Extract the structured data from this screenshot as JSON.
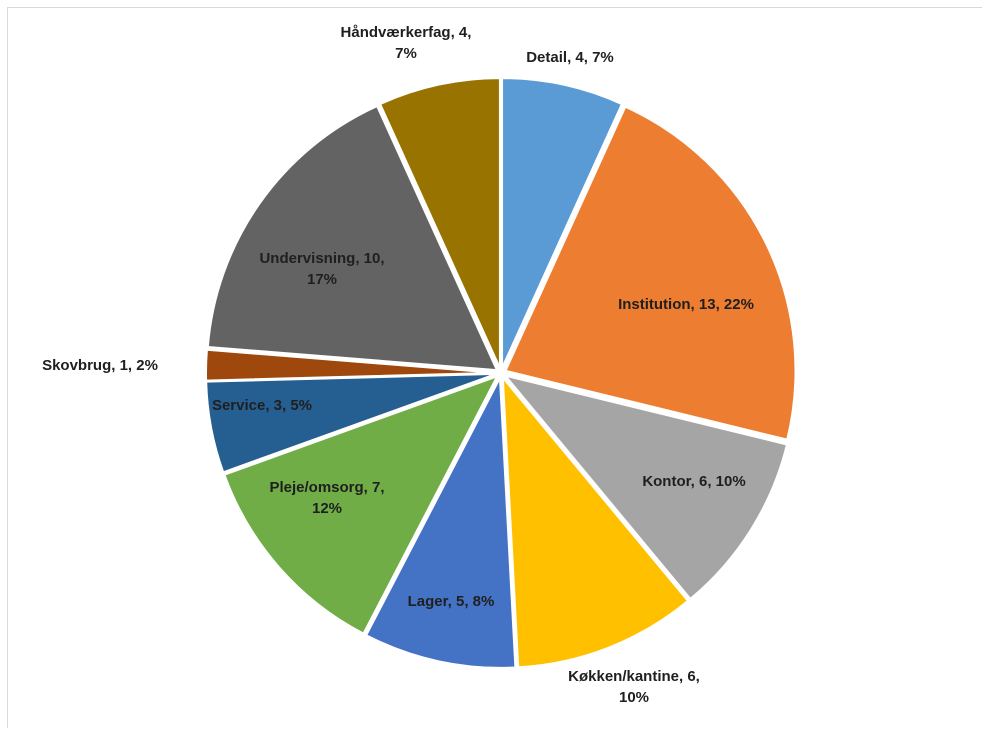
{
  "chart_data": {
    "type": "pie",
    "title": "",
    "categories": [
      "Detail",
      "Institution",
      "Kontor",
      "Køkken/kantine",
      "Lager",
      "Pleje/omsorg",
      "Service",
      "Skovbrug",
      "Undervisning",
      "Håndværkerfag"
    ],
    "values": [
      4,
      13,
      6,
      6,
      5,
      7,
      3,
      1,
      10,
      4
    ],
    "percents": [
      "7%",
      "22%",
      "10%",
      "10%",
      "8%",
      "12%",
      "5%",
      "2%",
      "17%",
      "7%"
    ],
    "colors": [
      "#5b9bd5",
      "#ed7d31",
      "#a5a5a5",
      "#ffc000",
      "#4472c4",
      "#70ad47",
      "#255e91",
      "#9e480e",
      "#636363",
      "#997300"
    ],
    "data_labels": [
      [
        "Detail, 4, 7%"
      ],
      [
        "Institution, 13, 22%"
      ],
      [
        "Kontor,  6, 10%"
      ],
      [
        "Køkken/kantine, 6,",
        "10%"
      ],
      [
        "Lager, 5, 8%"
      ],
      [
        "Pleje/omsorg, 7,",
        "12%"
      ],
      [
        "Service, 3, 5%"
      ],
      [
        "Skovbrug, 1, 2%"
      ],
      [
        "Undervisning, 10,",
        "17%"
      ],
      [
        "Håndværkerfag, 4,",
        "7%"
      ]
    ],
    "start_angle_deg": 0,
    "direction": "clockwise",
    "exploded": true,
    "legend": "none"
  }
}
